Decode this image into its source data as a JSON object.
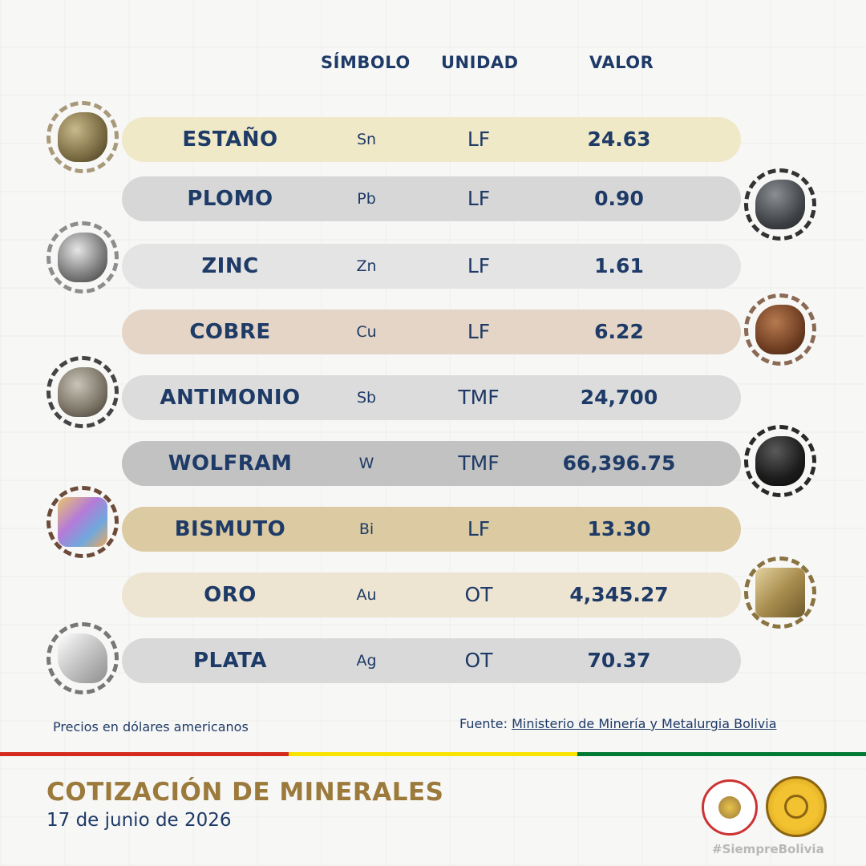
{
  "headers": {
    "symbol": "SÍMBOLO",
    "unit": "UNIDAD",
    "value": "VALOR"
  },
  "rows": [
    {
      "name": "ESTAÑO",
      "symbol": "Sn",
      "unit": "LF",
      "value": "24.63",
      "color": "#efe9c8"
    },
    {
      "name": "PLOMO",
      "symbol": "Pb",
      "unit": "LF",
      "value": "0.90",
      "color": "#d7d7d7"
    },
    {
      "name": "ZINC",
      "symbol": "Zn",
      "unit": "LF",
      "value": "1.61",
      "color": "#e4e4e4"
    },
    {
      "name": "COBRE",
      "symbol": "Cu",
      "unit": "LF",
      "value": "6.22",
      "color": "#e5d5c6"
    },
    {
      "name": "ANTIMONIO",
      "symbol": "Sb",
      "unit": "TMF",
      "value": "24,700",
      "color": "#dcdcdc"
    },
    {
      "name": "WOLFRAM",
      "symbol": "W",
      "unit": "TMF",
      "value": "66,396.75",
      "color": "#c2c2c2"
    },
    {
      "name": "BISMUTO",
      "symbol": "Bi",
      "unit": "LF",
      "value": "13.30",
      "color": "#dccba2"
    },
    {
      "name": "ORO",
      "symbol": "Au",
      "unit": "OT",
      "value": "4,345.27",
      "color": "#eee4d2"
    },
    {
      "name": "PLATA",
      "symbol": "Ag",
      "unit": "OT",
      "value": "70.37",
      "color": "#d9d9d9"
    }
  ],
  "footnote": "Precios en dólares americanos",
  "source": {
    "label": "Fuente:",
    "link": "Ministerio de Minería y Metalurgia Bolivia"
  },
  "title": "COTIZACIÓN DE MINERALES",
  "date": "17 de junio de 2026",
  "hashtag": "#SiempreBolivia",
  "flag_colors": [
    "#d52b1e",
    "#f9e300",
    "#007934"
  ],
  "accent_gold": "#9b7a3c",
  "text_navy": "#1e3a66"
}
